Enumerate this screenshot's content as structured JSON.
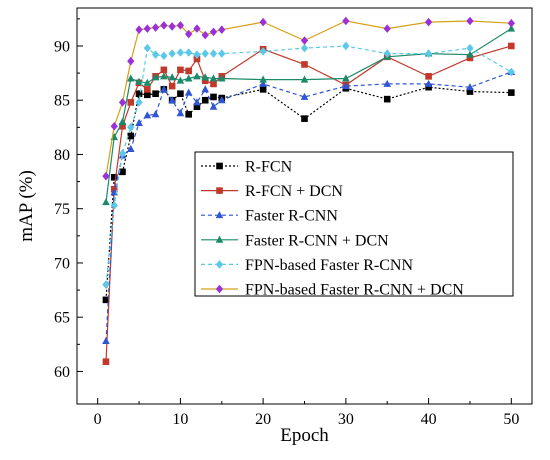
{
  "chart_data": {
    "type": "line",
    "title": "",
    "xlabel": "Epoch",
    "ylabel": "mAP (%)",
    "xlim": [
      -2.5,
      52.5
    ],
    "ylim": [
      57,
      93.5
    ],
    "xticks": [
      0,
      10,
      20,
      30,
      40,
      50
    ],
    "xtick_labels": [
      "0",
      "10",
      "20",
      "30",
      "40",
      "50"
    ],
    "yticks": [
      60,
      65,
      70,
      75,
      80,
      85,
      90
    ],
    "ytick_labels": [
      "60",
      "65",
      "70",
      "75",
      "80",
      "85",
      "90"
    ],
    "grid": false,
    "legend_position": "center-right",
    "x": [
      1,
      2,
      3,
      4,
      5,
      6,
      7,
      8,
      9,
      10,
      11,
      12,
      13,
      14,
      15,
      20,
      25,
      30,
      35,
      40,
      45,
      50
    ],
    "series": [
      {
        "name": "R-FCN",
        "color": "#000000",
        "line_style": "dotted",
        "marker": "square",
        "values": [
          66.6,
          77.9,
          78.4,
          81.7,
          85.6,
          85.5,
          85.6,
          86.0,
          85.0,
          85.6,
          83.7,
          84.4,
          85.0,
          85.3,
          85.2,
          86.0,
          83.3,
          86.1,
          85.1,
          86.2,
          85.8,
          85.7
        ]
      },
      {
        "name": "R-FCN + DCN",
        "color": "#c0392b",
        "line_style": "solid",
        "marker": "square",
        "values": [
          60.9,
          76.8,
          82.6,
          84.8,
          86.6,
          86.0,
          87.2,
          87.8,
          86.3,
          87.8,
          87.7,
          88.8,
          86.8,
          86.5,
          87.2,
          89.7,
          88.3,
          86.4,
          89.0,
          87.2,
          88.9,
          90.0
        ]
      },
      {
        "name": "Faster R-CNN",
        "color": "#2f55d4",
        "line_style": "dashed",
        "marker": "triangle",
        "values": [
          62.8,
          76.5,
          79.9,
          80.5,
          82.9,
          83.6,
          83.7,
          86.0,
          85.0,
          83.8,
          85.7,
          84.8,
          86.0,
          84.4,
          85.0,
          86.5,
          85.3,
          86.3,
          86.5,
          86.5,
          86.2,
          87.6
        ]
      },
      {
        "name": "Faster R-CNN + DCN",
        "color": "#1a8a6a",
        "line_style": "solid",
        "marker": "triangle",
        "values": [
          75.6,
          81.6,
          83.0,
          87.0,
          86.7,
          86.6,
          87.1,
          87.2,
          87.1,
          86.8,
          87.0,
          87.2,
          87.1,
          87.0,
          87.0,
          86.9,
          86.9,
          87.0,
          89.0,
          89.3,
          89.2,
          91.6
        ]
      },
      {
        "name": "FPN-based Faster R-CNN",
        "color": "#5bc8e8",
        "line_style": "dashed",
        "marker": "diamond",
        "values": [
          68.0,
          75.3,
          80.1,
          82.5,
          84.8,
          89.8,
          89.2,
          89.1,
          89.3,
          89.4,
          89.4,
          89.2,
          89.3,
          89.3,
          89.3,
          89.5,
          89.8,
          90.0,
          89.3,
          89.3,
          89.8,
          87.6
        ]
      },
      {
        "name": "FPN-based Faster R-CNN + DCN",
        "color": "#d4a017",
        "line_style": "solid",
        "marker": "diamond",
        "marker_color": "#9b30d9",
        "values": [
          78.0,
          82.6,
          84.8,
          88.6,
          91.5,
          91.6,
          91.7,
          91.9,
          91.8,
          91.9,
          91.1,
          91.6,
          91.0,
          91.3,
          91.5,
          92.2,
          90.5,
          92.3,
          91.6,
          92.2,
          92.3,
          92.1
        ]
      }
    ]
  }
}
